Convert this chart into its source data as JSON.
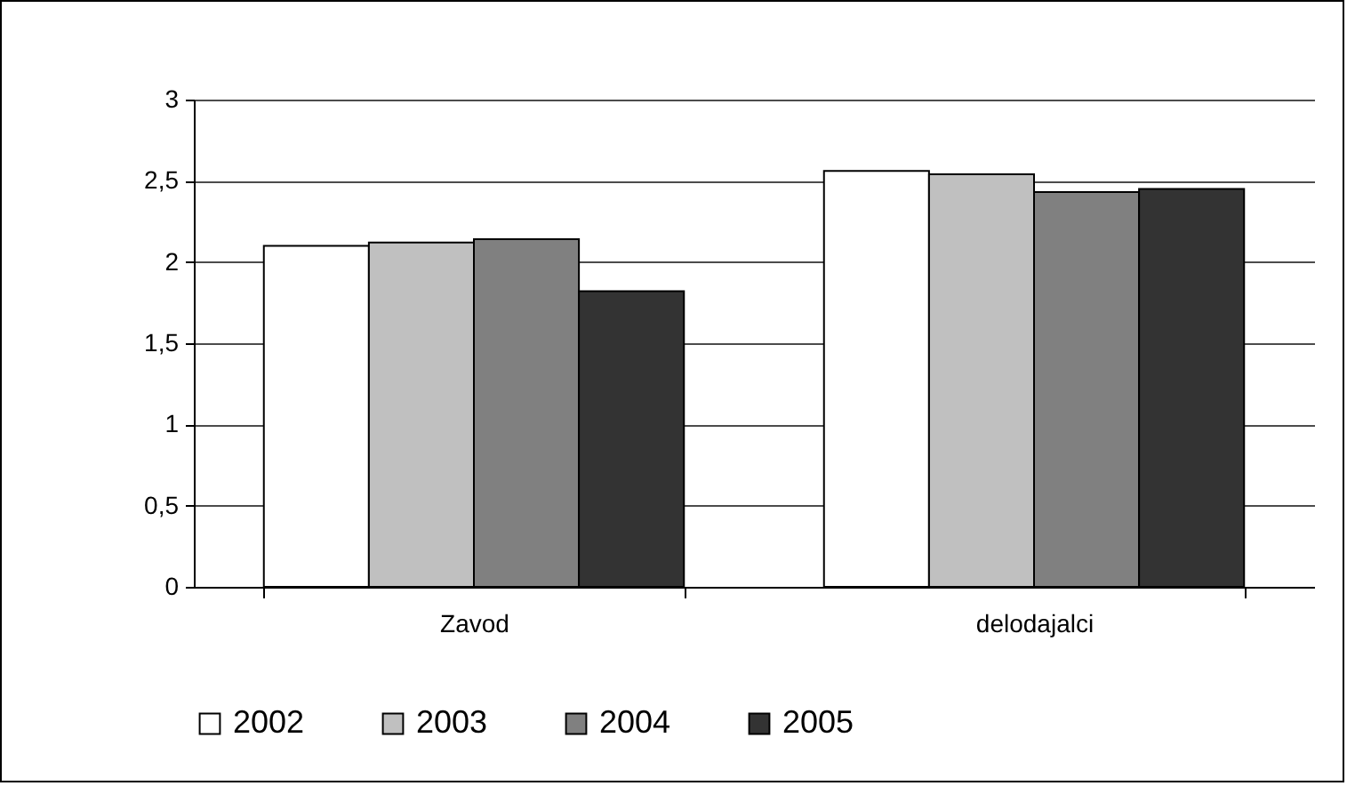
{
  "chart_data": {
    "type": "bar",
    "categories": [
      "Zavod",
      "delodajalci"
    ],
    "series": [
      {
        "name": "2002",
        "color": "#ffffff",
        "values": [
          2.1,
          2.56
        ]
      },
      {
        "name": "2003",
        "color": "#c0c0c0",
        "values": [
          2.12,
          2.54
        ]
      },
      {
        "name": "2004",
        "color": "#808080",
        "values": [
          2.14,
          2.43
        ]
      },
      {
        "name": "2005",
        "color": "#333333",
        "values": [
          1.82,
          2.45
        ]
      }
    ],
    "ylim": [
      0,
      3
    ],
    "yticks": [
      0,
      {
        "value": 0.5,
        "label": "0,5"
      },
      1,
      {
        "value": 1.5,
        "label": "1,5"
      },
      2,
      {
        "value": 2.5,
        "label": "2,5"
      },
      3
    ],
    "grid": "y",
    "legend": "bottom"
  }
}
